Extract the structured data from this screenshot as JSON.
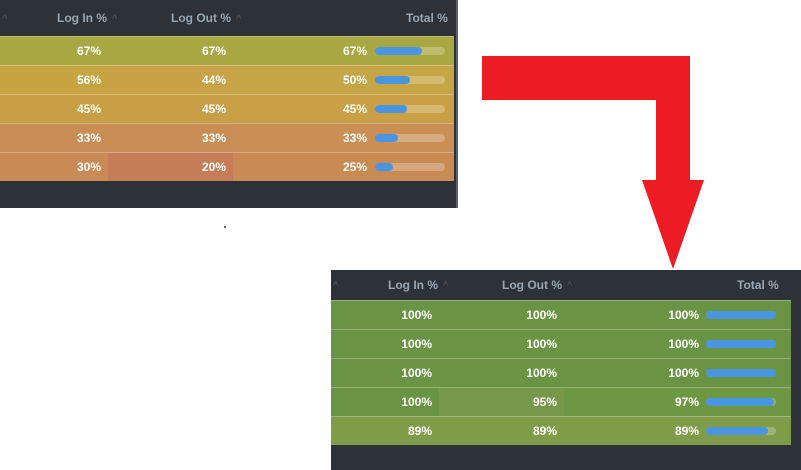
{
  "before": {
    "headers": {
      "login": "Log In %",
      "logout": "Log Out %",
      "total": "Total %"
    },
    "rows": [
      {
        "login": "67%",
        "logout": "67%",
        "total": "67%",
        "total_fraction": 0.67,
        "row_color": "#a8a741",
        "login_color": "#a9a742",
        "logout_color": "#a9a742"
      },
      {
        "login": "56%",
        "logout": "44%",
        "total": "50%",
        "total_fraction": 0.5,
        "row_color": "#c6a545",
        "login_color": "#c6a442",
        "logout_color": "#c9a147"
      },
      {
        "login": "45%",
        "logout": "45%",
        "total": "45%",
        "total_fraction": 0.45,
        "row_color": "#c9a043",
        "login_color": "#c89f45",
        "logout_color": "#c89f45"
      },
      {
        "login": "33%",
        "logout": "33%",
        "total": "33%",
        "total_fraction": 0.33,
        "row_color": "#c98f55",
        "login_color": "#c98d56",
        "logout_color": "#c98d56"
      },
      {
        "login": "30%",
        "logout": "20%",
        "total": "25%",
        "total_fraction": 0.25,
        "row_color": "#c98a54",
        "login_color": "#c98a55",
        "logout_color": "#c47d57"
      }
    ]
  },
  "after": {
    "headers": {
      "login": "Log In %",
      "logout": "Log Out %",
      "total": "Total %"
    },
    "rows": [
      {
        "login": "100%",
        "logout": "100%",
        "total": "100%",
        "total_fraction": 1.0,
        "row_color": "#6a9443",
        "login_color": "#6a9443",
        "logout_color": "#6a9443"
      },
      {
        "login": "100%",
        "logout": "100%",
        "total": "100%",
        "total_fraction": 1.0,
        "row_color": "#6a9443",
        "login_color": "#6a9443",
        "logout_color": "#6a9443"
      },
      {
        "login": "100%",
        "logout": "100%",
        "total": "100%",
        "total_fraction": 1.0,
        "row_color": "#6a9443",
        "login_color": "#6a9443",
        "logout_color": "#6a9443"
      },
      {
        "login": "100%",
        "logout": "95%",
        "total": "97%",
        "total_fraction": 0.97,
        "row_color": "#6e9744",
        "login_color": "#6a9443",
        "logout_color": "#77984a"
      },
      {
        "login": "89%",
        "logout": "89%",
        "total": "89%",
        "total_fraction": 0.89,
        "row_color": "#7f9c49",
        "login_color": "#7f9c49",
        "logout_color": "#7f9c49"
      }
    ]
  },
  "arrow_color": "#ed1c24",
  "bar_color": "#4a95e2"
}
